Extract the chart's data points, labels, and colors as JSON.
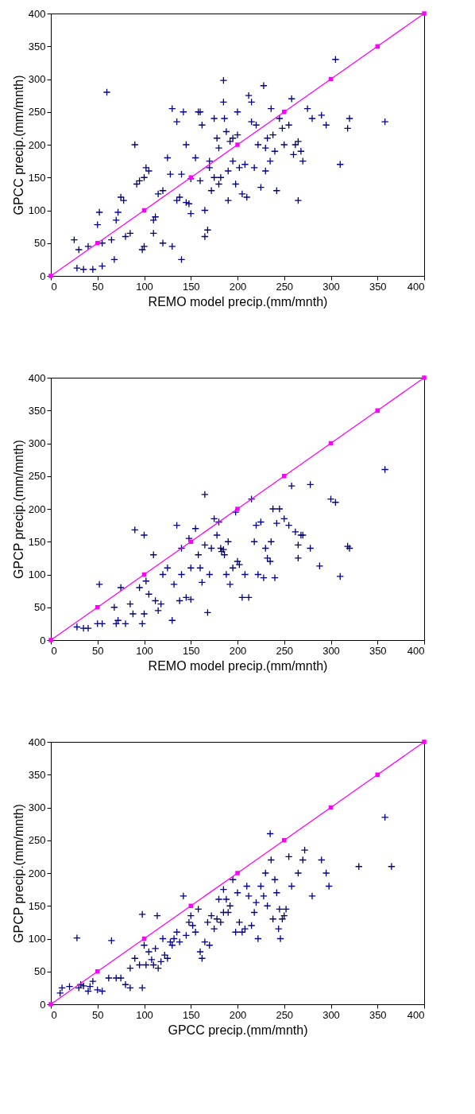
{
  "chart_data": [
    {
      "type": "scatter",
      "xlabel": "REMO model precip.(mm/mnth)",
      "ylabel": "GPCC precip.(mm/mnth)",
      "xlim": [
        0,
        400
      ],
      "ylim": [
        0,
        400
      ],
      "xticks": [
        0,
        50,
        100,
        150,
        200,
        250,
        300,
        350,
        400
      ],
      "yticks": [
        0,
        50,
        100,
        150,
        200,
        250,
        300,
        350,
        400
      ],
      "series": [
        {
          "type": "scatter",
          "marker": "cross",
          "color": "#000080",
          "x": [
            25,
            28,
            30,
            35,
            40,
            45,
            50,
            52,
            55,
            55,
            60,
            65,
            68,
            70,
            72,
            75,
            78,
            80,
            85,
            90,
            92,
            95,
            98,
            100,
            100,
            102,
            105,
            110,
            110,
            112,
            115,
            120,
            120,
            125,
            128,
            130,
            130,
            135,
            135,
            138,
            140,
            140,
            142,
            145,
            145,
            148,
            150,
            150,
            155,
            158,
            160,
            160,
            162,
            165,
            165,
            168,
            170,
            170,
            172,
            175,
            175,
            178,
            180,
            180,
            182,
            185,
            185,
            186,
            188,
            190,
            190,
            192,
            195,
            195,
            198,
            200,
            200,
            202,
            205,
            208,
            210,
            212,
            215,
            215,
            218,
            220,
            222,
            225,
            228,
            230,
            230,
            232,
            235,
            236,
            238,
            240,
            242,
            245,
            248,
            250,
            255,
            258,
            260,
            262,
            265,
            265,
            268,
            270,
            275,
            280,
            290,
            295,
            305,
            310,
            318,
            320,
            358
          ],
          "values": [
            55,
            12,
            40,
            10,
            45,
            10,
            78,
            97,
            50,
            15,
            280,
            55,
            25,
            85,
            97,
            120,
            115,
            60,
            65,
            200,
            140,
            145,
            40,
            45,
            150,
            165,
            160,
            65,
            85,
            90,
            125,
            130,
            50,
            180,
            155,
            45,
            255,
            235,
            115,
            120,
            155,
            25,
            250,
            200,
            112,
            110,
            95,
            148,
            180,
            250,
            250,
            145,
            230,
            100,
            60,
            70,
            175,
            165,
            130,
            240,
            150,
            210,
            195,
            140,
            150,
            265,
            298,
            240,
            220,
            160,
            115,
            205,
            175,
            210,
            140,
            250,
            215,
            165,
            125,
            170,
            120,
            275,
            265,
            235,
            165,
            230,
            200,
            135,
            290,
            160,
            195,
            210,
            175,
            255,
            215,
            190,
            130,
            240,
            225,
            200,
            230,
            270,
            185,
            200,
            205,
            115,
            190,
            175,
            255,
            240,
            245,
            230,
            330,
            170,
            225,
            240,
            235
          ]
        },
        {
          "type": "line",
          "marker": "square",
          "color": "#ff00ff",
          "x": [
            0,
            50,
            100,
            150,
            200,
            250,
            300,
            350,
            400
          ],
          "values": [
            0,
            50,
            100,
            150,
            200,
            250,
            300,
            350,
            400
          ]
        }
      ]
    },
    {
      "type": "scatter",
      "xlabel": "REMO model precip.(mm/mnth)",
      "ylabel": "GPCP precip.(mm/mnth)",
      "xlim": [
        0,
        400
      ],
      "ylim": [
        0,
        400
      ],
      "xticks": [
        0,
        50,
        100,
        150,
        200,
        250,
        300,
        350,
        400
      ],
      "yticks": [
        0,
        50,
        100,
        150,
        200,
        250,
        300,
        350,
        400
      ],
      "series": [
        {
          "type": "scatter",
          "marker": "cross",
          "color": "#000080",
          "x": [
            28,
            35,
            40,
            50,
            52,
            55,
            68,
            70,
            72,
            75,
            80,
            85,
            88,
            90,
            95,
            98,
            100,
            100,
            102,
            105,
            110,
            112,
            115,
            118,
            120,
            125,
            130,
            132,
            135,
            138,
            140,
            140,
            145,
            148,
            150,
            150,
            155,
            158,
            160,
            162,
            165,
            165,
            168,
            170,
            172,
            175,
            178,
            180,
            182,
            183,
            185,
            186,
            188,
            190,
            192,
            195,
            198,
            200,
            202,
            205,
            208,
            212,
            215,
            218,
            220,
            222,
            225,
            228,
            230,
            232,
            235,
            236,
            238,
            240,
            242,
            245,
            250,
            255,
            258,
            262,
            265,
            265,
            268,
            270,
            278,
            278,
            288,
            300,
            305,
            310,
            318,
            320,
            358
          ],
          "values": [
            20,
            18,
            18,
            25,
            85,
            25,
            50,
            25,
            30,
            80,
            25,
            55,
            40,
            168,
            80,
            25,
            160,
            40,
            90,
            70,
            130,
            60,
            45,
            55,
            100,
            110,
            30,
            85,
            175,
            60,
            140,
            100,
            65,
            155,
            110,
            62,
            170,
            130,
            110,
            88,
            222,
            145,
            42,
            100,
            140,
            185,
            160,
            180,
            140,
            135,
            138,
            130,
            100,
            150,
            85,
            110,
            195,
            120,
            115,
            65,
            100,
            65,
            215,
            150,
            175,
            100,
            180,
            95,
            140,
            125,
            120,
            150,
            200,
            95,
            178,
            200,
            185,
            175,
            235,
            165,
            145,
            125,
            160,
            160,
            237,
            140,
            113,
            215,
            210,
            97,
            143,
            140,
            260
          ]
        },
        {
          "type": "line",
          "marker": "square",
          "color": "#ff00ff",
          "x": [
            0,
            50,
            100,
            150,
            200,
            250,
            300,
            350,
            400
          ],
          "values": [
            0,
            50,
            100,
            150,
            200,
            250,
            300,
            350,
            400
          ]
        }
      ]
    },
    {
      "type": "scatter",
      "xlabel": "GPCC precip.(mm/mnth)",
      "ylabel": "GPCP precip.(mm/mnth)",
      "xlim": [
        0,
        400
      ],
      "ylim": [
        0,
        400
      ],
      "xticks": [
        0,
        50,
        100,
        150,
        200,
        250,
        300,
        350,
        400
      ],
      "yticks": [
        0,
        50,
        100,
        150,
        200,
        250,
        300,
        350,
        400
      ],
      "series": [
        {
          "type": "scatter",
          "marker": "cross",
          "color": "#000080",
          "x": [
            10,
            12,
            20,
            28,
            30,
            32,
            35,
            40,
            42,
            45,
            50,
            55,
            62,
            65,
            70,
            75,
            80,
            85,
            85,
            90,
            95,
            98,
            98,
            100,
            102,
            105,
            108,
            110,
            112,
            114,
            115,
            118,
            120,
            122,
            125,
            128,
            130,
            132,
            135,
            138,
            142,
            145,
            148,
            150,
            152,
            155,
            158,
            160,
            162,
            165,
            168,
            170,
            172,
            175,
            178,
            180,
            182,
            185,
            185,
            188,
            190,
            192,
            195,
            198,
            200,
            202,
            205,
            208,
            210,
            212,
            215,
            218,
            220,
            222,
            225,
            228,
            230,
            232,
            235,
            236,
            238,
            240,
            242,
            244,
            245,
            246,
            248,
            250,
            252,
            255,
            258,
            265,
            270,
            272,
            280,
            290,
            295,
            298,
            330,
            358,
            365
          ],
          "values": [
            17,
            25,
            27,
            101,
            25,
            30,
            28,
            20,
            27,
            35,
            22,
            20,
            40,
            97,
            40,
            40,
            30,
            25,
            55,
            70,
            60,
            137,
            25,
            90,
            60,
            80,
            68,
            60,
            85,
            135,
            55,
            65,
            100,
            75,
            70,
            95,
            90,
            100,
            110,
            95,
            165,
            105,
            125,
            135,
            120,
            110,
            145,
            80,
            70,
            95,
            125,
            90,
            135,
            115,
            130,
            160,
            125,
            175,
            140,
            160,
            140,
            150,
            190,
            110,
            170,
            125,
            110,
            115,
            180,
            165,
            120,
            140,
            155,
            100,
            180,
            165,
            200,
            150,
            260,
            220,
            130,
            190,
            170,
            115,
            145,
            100,
            130,
            135,
            145,
            225,
            180,
            200,
            220,
            235,
            165,
            220,
            200,
            180,
            210,
            285,
            210
          ]
        },
        {
          "type": "line",
          "marker": "square",
          "color": "#ff00ff",
          "x": [
            0,
            50,
            100,
            150,
            200,
            250,
            300,
            350,
            400
          ],
          "values": [
            0,
            50,
            100,
            150,
            200,
            250,
            300,
            350,
            400
          ]
        }
      ]
    }
  ]
}
